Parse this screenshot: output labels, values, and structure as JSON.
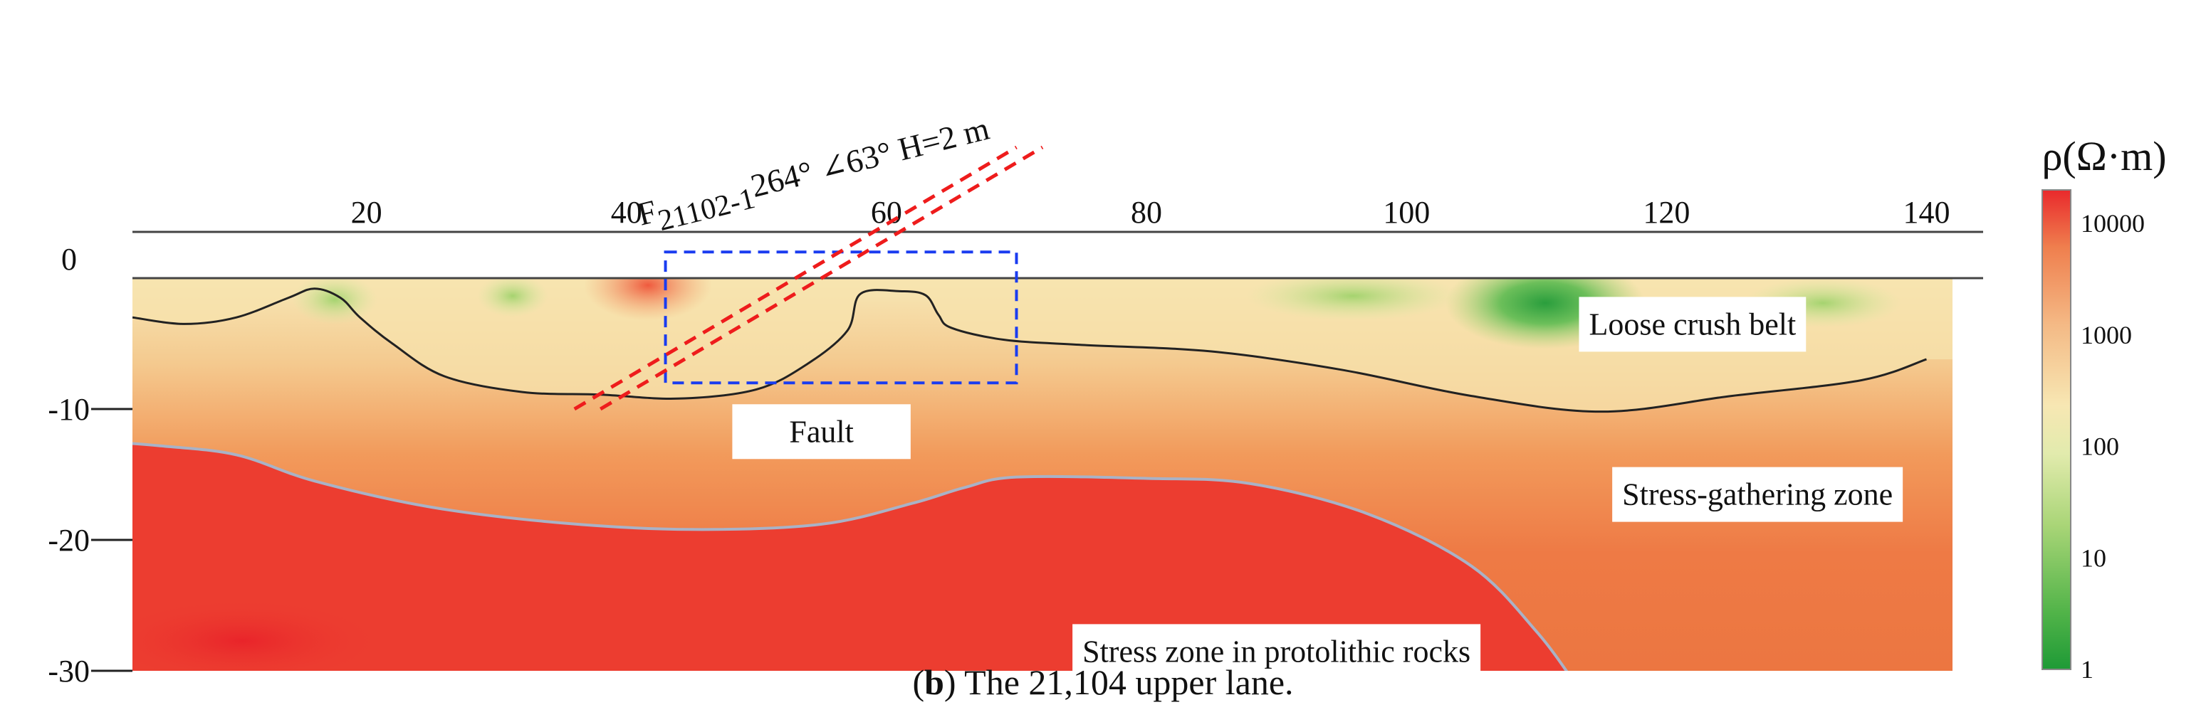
{
  "chart_data": {
    "type": "heatmap",
    "title": "",
    "xlabel": "",
    "ylabel": "",
    "x_ticks": [
      20,
      40,
      60,
      80,
      100,
      120,
      140
    ],
    "y_ticks": [
      0,
      -10,
      -20,
      -30
    ],
    "x_tick_labels": [
      "20",
      "40",
      "60",
      "80",
      "100",
      "120",
      "140"
    ],
    "y_tick_labels": [
      "0",
      "-10",
      "-20",
      "-30"
    ],
    "xlim": [
      2,
      142
    ],
    "ylim": [
      -30,
      0
    ],
    "colorbar": {
      "title": "ρ(Ω·m)",
      "scale": "log",
      "range": [
        1,
        20000
      ],
      "ticks": [
        1,
        10,
        100,
        1000,
        10000
      ],
      "tick_labels": [
        "1",
        "10",
        "100",
        "1000",
        "10000"
      ]
    },
    "fault": {
      "label_main": "F",
      "label_sub": "21102-1",
      "label_rest": "264°  ∠63°  H=2 m",
      "lines": [
        {
          "x": [
            36,
            70
          ],
          "y": [
            -10,
            10
          ]
        },
        {
          "x": [
            38,
            72
          ],
          "y": [
            -10,
            10
          ]
        }
      ]
    },
    "fault_box": {
      "x": [
        43,
        70
      ],
      "y": [
        -8,
        2
      ]
    },
    "zones": [
      {
        "label": "Loose crush belt",
        "x": 122,
        "y": -3.5
      },
      {
        "label": "Fault",
        "x": 55,
        "y": -11.7
      },
      {
        "label": "Stress-gathering zone",
        "x": 127,
        "y": -16.5
      },
      {
        "label": "Stress zone in protolithic  rocks",
        "x": 90,
        "y": -28.5
      }
    ],
    "boundary_loose_crush": {
      "x": [
        2,
        6,
        10,
        14,
        16,
        18,
        19.5,
        22,
        26,
        32,
        38,
        44,
        50,
        54,
        57,
        58,
        61,
        63,
        64,
        65,
        69,
        75,
        85,
        95,
        105,
        115,
        125,
        135,
        140
      ],
      "y": [
        -3,
        -3.5,
        -3,
        -1.5,
        -0.8,
        -1.5,
        -3,
        -5,
        -7.5,
        -8.7,
        -8.9,
        -9.2,
        -8.5,
        -6.5,
        -4,
        -1.2,
        -1,
        -1.3,
        -2.8,
        -3.8,
        -4.7,
        -5.1,
        -5.6,
        -7,
        -9,
        -10.2,
        -9,
        -7.8,
        -6.2
      ]
    },
    "boundary_stress_zone": {
      "x": [
        0,
        4,
        10,
        16,
        25,
        35,
        45,
        55,
        62,
        66,
        70,
        80,
        88,
        97,
        105,
        110,
        113
      ],
      "y": [
        -12.5,
        -12.8,
        -13.5,
        -15.5,
        -17.5,
        -18.7,
        -19.2,
        -18.8,
        -17.2,
        -16,
        -15.2,
        -15.3,
        -15.7,
        -18,
        -22,
        -27,
        -31
      ]
    }
  },
  "caption": {
    "letter": "b",
    "text": ") The 21,104 upper lane."
  }
}
